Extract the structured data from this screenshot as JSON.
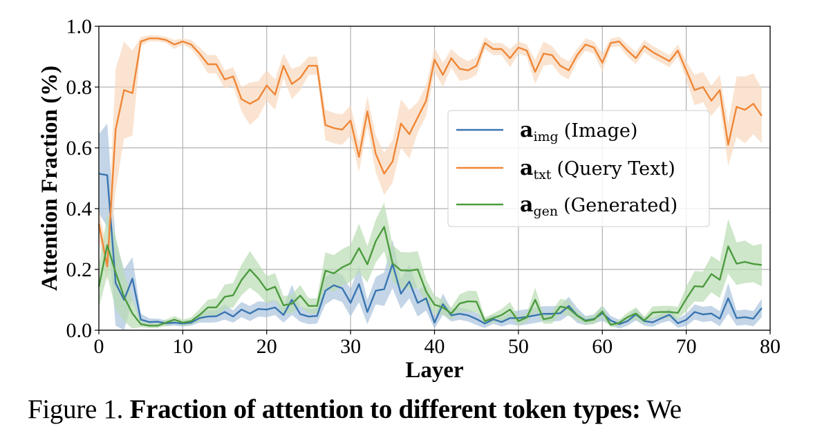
{
  "chart_data": {
    "type": "line",
    "title": "",
    "xlabel": "Layer",
    "ylabel": "Attention Fraction (%)",
    "xlim": [
      0,
      80
    ],
    "ylim": [
      0.0,
      1.0
    ],
    "xticks": [
      "0",
      "10",
      "20",
      "30",
      "40",
      "50",
      "60",
      "70",
      "80"
    ],
    "yticks": [
      "0.0",
      "0.2",
      "0.4",
      "0.6",
      "0.8",
      "1.0"
    ],
    "grid": true,
    "legend_position": "center-right",
    "x": [
      0,
      1,
      2,
      3,
      4,
      5,
      6,
      7,
      8,
      9,
      10,
      11,
      12,
      13,
      14,
      15,
      16,
      17,
      18,
      19,
      20,
      21,
      22,
      23,
      24,
      25,
      26,
      27,
      28,
      29,
      30,
      31,
      32,
      33,
      34,
      35,
      36,
      37,
      38,
      39,
      40,
      41,
      42,
      43,
      44,
      45,
      46,
      47,
      48,
      49,
      50,
      51,
      52,
      53,
      54,
      55,
      56,
      57,
      58,
      59,
      60,
      61,
      62,
      63,
      64,
      65,
      66,
      67,
      68,
      69,
      70,
      71,
      72,
      73,
      74,
      75,
      76,
      77,
      78,
      79
    ],
    "series": [
      {
        "name": "a_img (Image)",
        "symbol": "a",
        "subscript": "img",
        "label": "(Image)",
        "color": "#3a75b0",
        "band_color": "#a9c3dd",
        "values": [
          0.515,
          0.51,
          0.155,
          0.1,
          0.17,
          0.035,
          0.027,
          0.028,
          0.023,
          0.025,
          0.022,
          0.025,
          0.04,
          0.045,
          0.046,
          0.06,
          0.045,
          0.068,
          0.055,
          0.07,
          0.068,
          0.075,
          0.05,
          0.1,
          0.053,
          0.045,
          0.047,
          0.13,
          0.148,
          0.138,
          0.09,
          0.152,
          0.06,
          0.13,
          0.135,
          0.218,
          0.12,
          0.16,
          0.09,
          0.105,
          0.025,
          0.086,
          0.049,
          0.054,
          0.049,
          0.037,
          0.022,
          0.036,
          0.027,
          0.04,
          0.04,
          0.044,
          0.049,
          0.054,
          0.054,
          0.056,
          0.08,
          0.049,
          0.032,
          0.037,
          0.056,
          0.032,
          0.02,
          0.03,
          0.052,
          0.03,
          0.026,
          0.039,
          0.051,
          0.023,
          0.034,
          0.06,
          0.052,
          0.055,
          0.038,
          0.105,
          0.04,
          0.043,
          0.038,
          0.073
        ],
        "band_halfwidth": [
          0.13,
          0.17,
          0.14,
          0.1,
          0.07,
          0.02,
          0.012,
          0.01,
          0.01,
          0.01,
          0.01,
          0.01,
          0.015,
          0.02,
          0.02,
          0.025,
          0.02,
          0.025,
          0.025,
          0.025,
          0.025,
          0.025,
          0.025,
          0.05,
          0.025,
          0.025,
          0.025,
          0.045,
          0.045,
          0.045,
          0.045,
          0.06,
          0.04,
          0.045,
          0.055,
          0.08,
          0.05,
          0.055,
          0.045,
          0.04,
          0.02,
          0.035,
          0.02,
          0.02,
          0.02,
          0.02,
          0.015,
          0.015,
          0.015,
          0.02,
          0.025,
          0.025,
          0.025,
          0.025,
          0.025,
          0.025,
          0.03,
          0.025,
          0.015,
          0.015,
          0.025,
          0.015,
          0.015,
          0.015,
          0.02,
          0.015,
          0.015,
          0.015,
          0.02,
          0.015,
          0.02,
          0.025,
          0.025,
          0.025,
          0.025,
          0.05,
          0.025,
          0.025,
          0.025,
          0.03
        ]
      },
      {
        "name": "a_txt (Query Text)",
        "symbol": "a",
        "subscript": "txt",
        "label": "(Query Text)",
        "color": "#ef8636",
        "band_color": "#f8d9bd",
        "values": [
          0.35,
          0.21,
          0.66,
          0.79,
          0.78,
          0.95,
          0.96,
          0.96,
          0.955,
          0.94,
          0.95,
          0.94,
          0.91,
          0.875,
          0.875,
          0.825,
          0.835,
          0.76,
          0.745,
          0.76,
          0.805,
          0.775,
          0.87,
          0.81,
          0.83,
          0.87,
          0.87,
          0.675,
          0.665,
          0.66,
          0.69,
          0.57,
          0.72,
          0.58,
          0.515,
          0.555,
          0.68,
          0.645,
          0.7,
          0.755,
          0.89,
          0.84,
          0.895,
          0.86,
          0.855,
          0.87,
          0.945,
          0.925,
          0.925,
          0.895,
          0.93,
          0.92,
          0.85,
          0.91,
          0.905,
          0.87,
          0.855,
          0.905,
          0.94,
          0.93,
          0.88,
          0.945,
          0.95,
          0.92,
          0.895,
          0.935,
          0.915,
          0.9,
          0.885,
          0.92,
          0.855,
          0.79,
          0.8,
          0.755,
          0.79,
          0.61,
          0.735,
          0.725,
          0.745,
          0.705
        ],
        "band_halfwidth": [
          0.05,
          0.05,
          0.2,
          0.16,
          0.14,
          0.015,
          0.01,
          0.01,
          0.01,
          0.015,
          0.01,
          0.015,
          0.02,
          0.03,
          0.03,
          0.03,
          0.03,
          0.04,
          0.07,
          0.06,
          0.05,
          0.05,
          0.04,
          0.05,
          0.04,
          0.03,
          0.03,
          0.05,
          0.05,
          0.05,
          0.05,
          0.05,
          0.05,
          0.06,
          0.07,
          0.07,
          0.08,
          0.08,
          0.05,
          0.05,
          0.04,
          0.04,
          0.03,
          0.04,
          0.03,
          0.03,
          0.02,
          0.02,
          0.02,
          0.03,
          0.02,
          0.02,
          0.04,
          0.04,
          0.03,
          0.03,
          0.03,
          0.02,
          0.02,
          0.02,
          0.03,
          0.015,
          0.015,
          0.02,
          0.02,
          0.02,
          0.02,
          0.02,
          0.02,
          0.02,
          0.03,
          0.05,
          0.05,
          0.05,
          0.05,
          0.07,
          0.1,
          0.11,
          0.1,
          0.09
        ]
      },
      {
        "name": "a_gen (Generated)",
        "symbol": "a",
        "subscript": "gen",
        "label": "(Generated)",
        "color": "#4b9b3e",
        "band_color": "#b9dcb2",
        "values": [
          0.143,
          0.28,
          0.19,
          0.11,
          0.055,
          0.02,
          0.015,
          0.015,
          0.025,
          0.035,
          0.025,
          0.03,
          0.05,
          0.075,
          0.075,
          0.11,
          0.115,
          0.165,
          0.2,
          0.17,
          0.132,
          0.143,
          0.082,
          0.087,
          0.114,
          0.08,
          0.08,
          0.196,
          0.187,
          0.207,
          0.22,
          0.27,
          0.217,
          0.293,
          0.34,
          0.22,
          0.197,
          0.196,
          0.2,
          0.127,
          0.084,
          0.075,
          0.055,
          0.088,
          0.095,
          0.094,
          0.03,
          0.04,
          0.05,
          0.068,
          0.03,
          0.042,
          0.1,
          0.036,
          0.042,
          0.078,
          0.072,
          0.048,
          0.03,
          0.035,
          0.062,
          0.018,
          0.024,
          0.043,
          0.055,
          0.032,
          0.058,
          0.06,
          0.06,
          0.057,
          0.103,
          0.145,
          0.143,
          0.185,
          0.166,
          0.276,
          0.219,
          0.225,
          0.218,
          0.215
        ],
        "band_halfwidth": [
          0.07,
          0.1,
          0.12,
          0.08,
          0.05,
          0.01,
          0.008,
          0.008,
          0.01,
          0.012,
          0.01,
          0.012,
          0.02,
          0.025,
          0.03,
          0.04,
          0.04,
          0.05,
          0.06,
          0.05,
          0.045,
          0.045,
          0.03,
          0.03,
          0.035,
          0.025,
          0.025,
          0.06,
          0.06,
          0.06,
          0.06,
          0.08,
          0.06,
          0.07,
          0.08,
          0.06,
          0.06,
          0.06,
          0.06,
          0.04,
          0.03,
          0.025,
          0.02,
          0.03,
          0.035,
          0.035,
          0.012,
          0.015,
          0.02,
          0.025,
          0.015,
          0.015,
          0.04,
          0.015,
          0.02,
          0.025,
          0.025,
          0.015,
          0.012,
          0.015,
          0.02,
          0.008,
          0.01,
          0.015,
          0.02,
          0.012,
          0.02,
          0.02,
          0.02,
          0.02,
          0.04,
          0.05,
          0.05,
          0.06,
          0.06,
          0.09,
          0.07,
          0.07,
          0.06,
          0.07
        ]
      }
    ]
  },
  "caption": {
    "prefix": "Figure 1.",
    "bold": "Fraction of attention to different token types:",
    "suffix": "We"
  },
  "colors": {
    "grid": "#b0b0b0",
    "axis": "#000000"
  }
}
